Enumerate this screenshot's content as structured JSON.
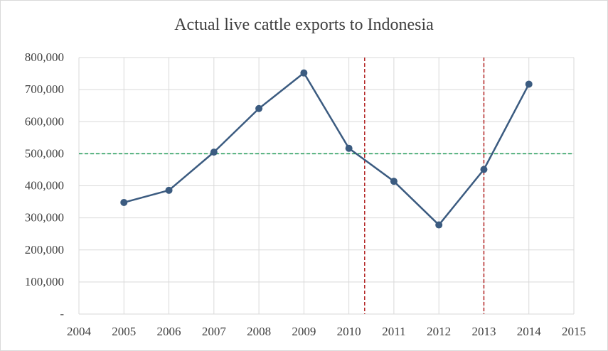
{
  "chart_data": {
    "type": "scatter",
    "title": "Actual live cattle exports to Indonesia",
    "xlabel": "",
    "ylabel": "",
    "xlim": [
      2004,
      2015
    ],
    "ylim": [
      0,
      800000
    ],
    "x_ticks": [
      "2004",
      "2005",
      "2006",
      "2007",
      "2008",
      "2009",
      "2010",
      "2011",
      "2012",
      "2013",
      "2014",
      "2015"
    ],
    "y_ticks": [
      "-",
      "100,000",
      "200,000",
      "300,000",
      "400,000",
      "500,000",
      "600,000",
      "700,000",
      "800,000"
    ],
    "grid": true,
    "legend": "none",
    "series": [
      {
        "x": [
          2005,
          2006,
          2007,
          2008,
          2009,
          2010,
          2011,
          2012,
          2013,
          2014
        ],
        "y": [
          348000,
          386000,
          505000,
          641000,
          752000,
          517000,
          414000,
          278000,
          451000,
          717000
        ],
        "color": "#3b5b80"
      }
    ],
    "reference_lines": [
      {
        "orientation": "horizontal",
        "value": 500000,
        "color": "#1f9a55",
        "style": "dashed"
      },
      {
        "orientation": "vertical",
        "value": 2010.35,
        "color": "#b22222",
        "style": "dashed"
      },
      {
        "orientation": "vertical",
        "value": 2013.0,
        "color": "#b22222",
        "style": "dashed"
      }
    ],
    "gridline_color": "#d9d9d9",
    "tick_label_color": "#404040"
  }
}
